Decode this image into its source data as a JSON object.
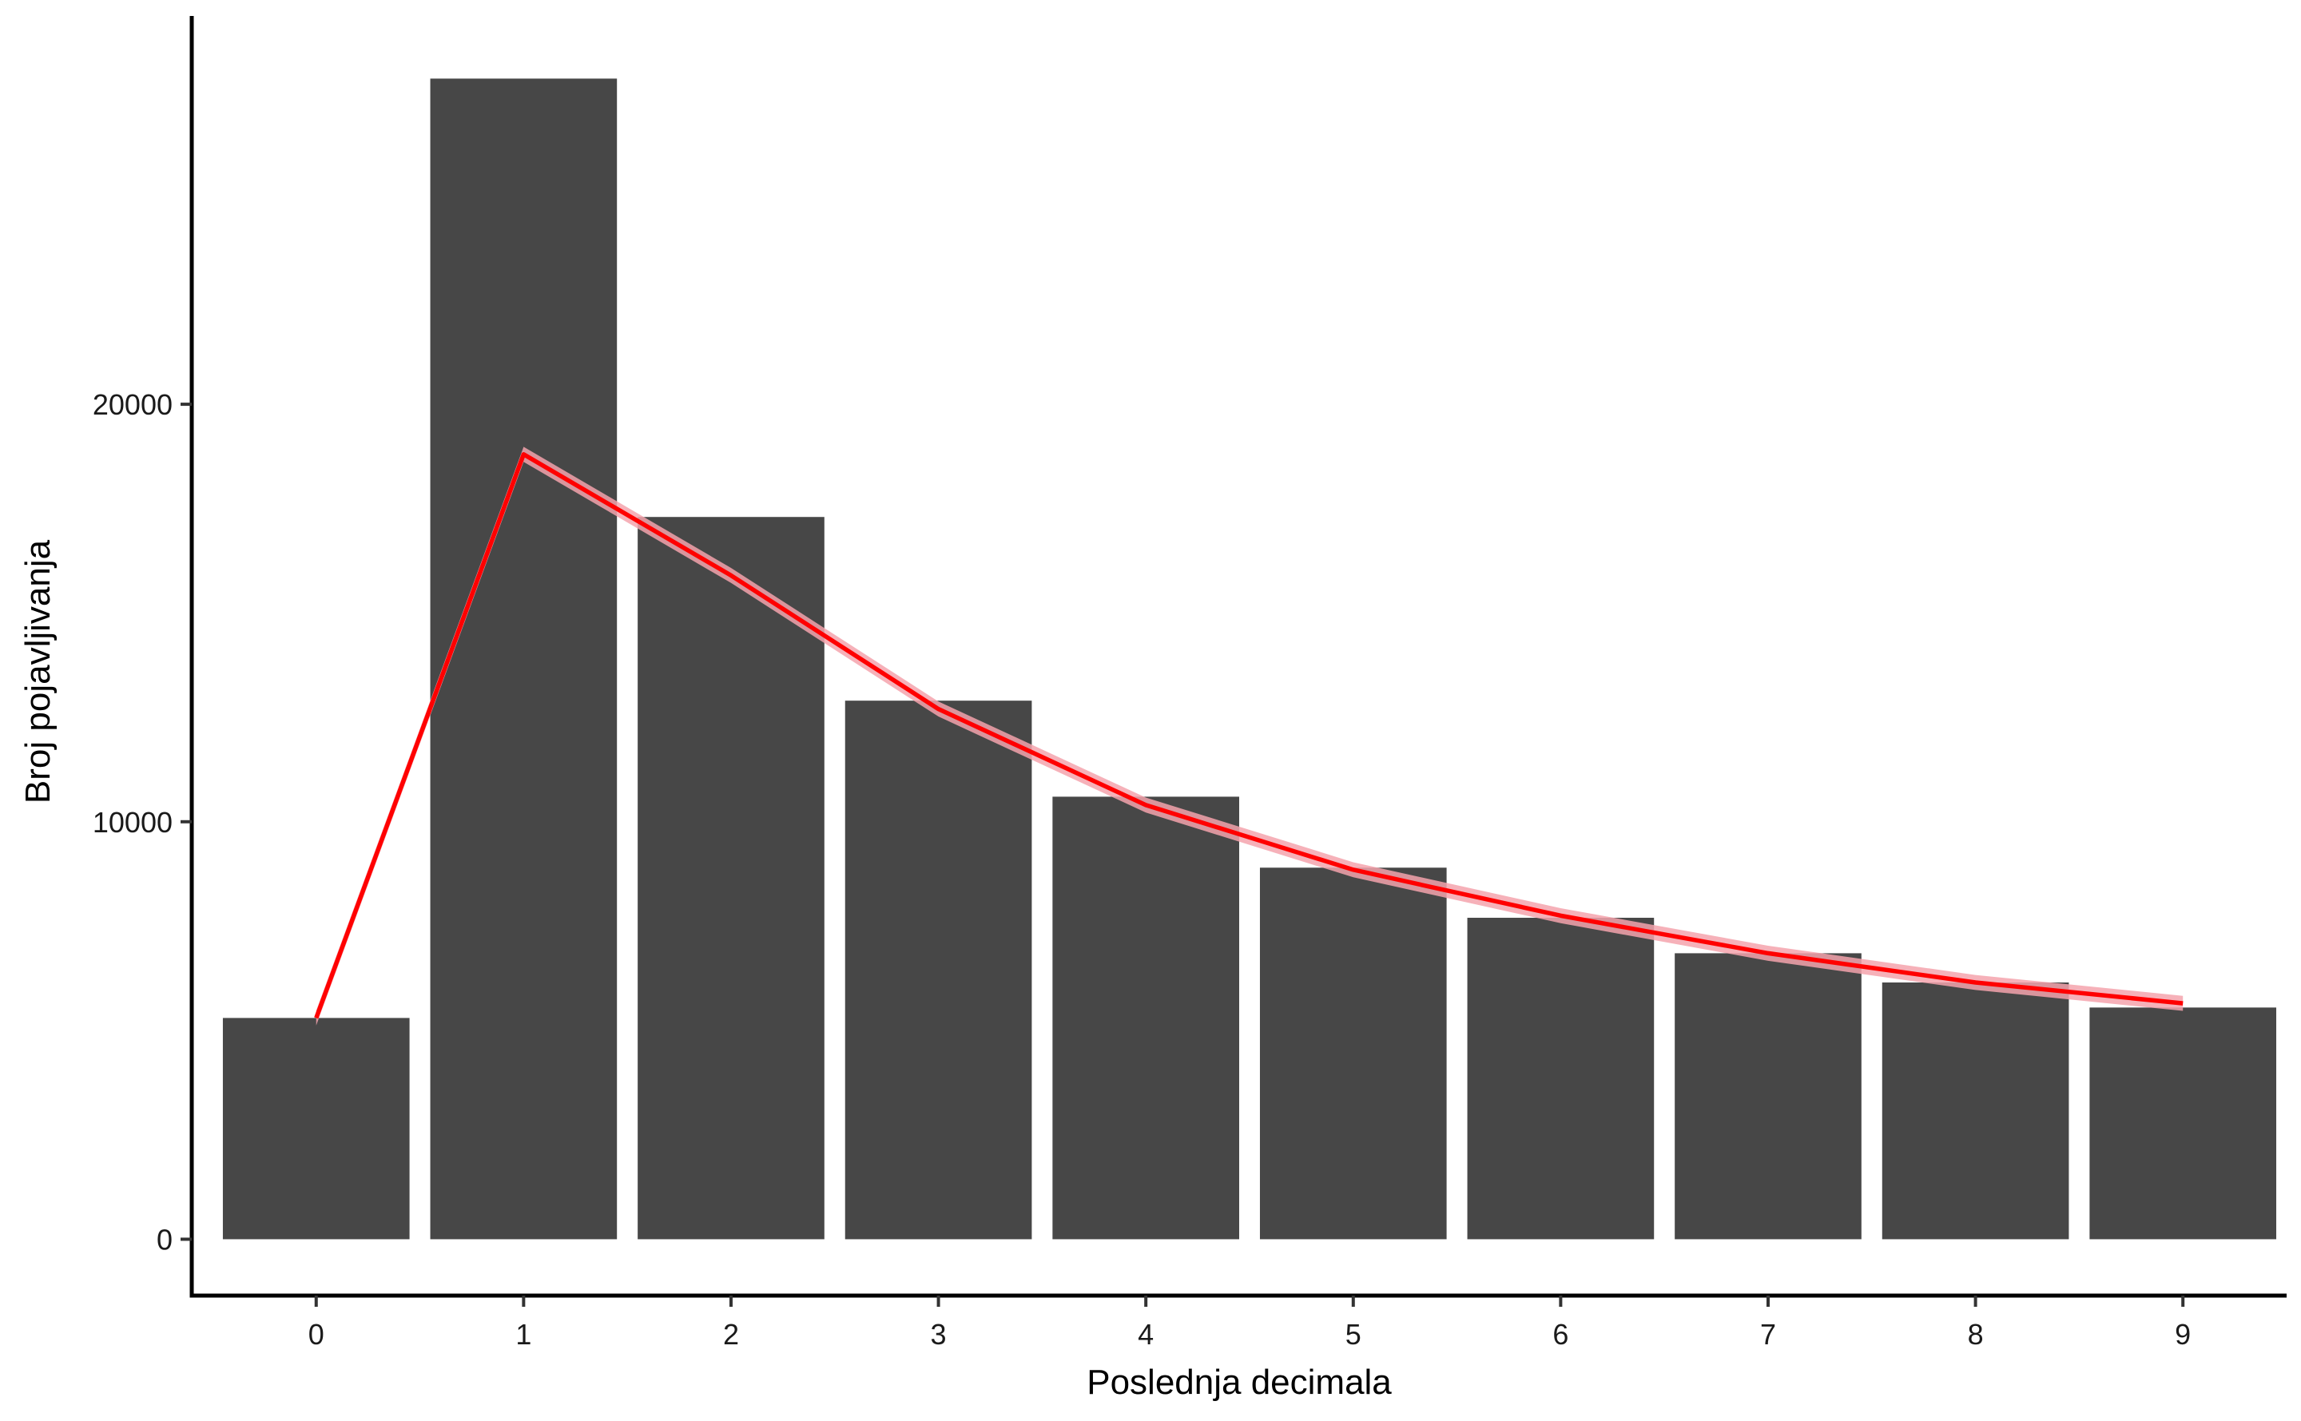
{
  "chart_data": {
    "type": "bar",
    "title": "",
    "xlabel": "Poslednja decimala",
    "ylabel": "Broj pojavljivanja",
    "categories": [
      "0",
      "1",
      "2",
      "3",
      "4",
      "5",
      "6",
      "7",
      "8",
      "9"
    ],
    "series": [
      {
        "type": "bar",
        "values": [
          5300,
          27800,
          17300,
          12900,
          10600,
          8900,
          7700,
          6850,
          6150,
          5550
        ]
      },
      {
        "type": "line",
        "values": [
          5300,
          18800,
          15900,
          12700,
          10400,
          8850,
          7750,
          6850,
          6150,
          5650
        ],
        "ribbon_halfwidth": 180
      }
    ],
    "ylim": [
      -1350,
      29300
    ],
    "yticks": [
      0,
      10000,
      20000
    ],
    "ytick_labels": [
      "0",
      "10000",
      "20000"
    ],
    "grid": false,
    "legend": "none",
    "colors": {
      "bar": "#474747",
      "line": "#ff0000",
      "ribbon": "#f4a3ad",
      "axis": "#000000"
    }
  }
}
